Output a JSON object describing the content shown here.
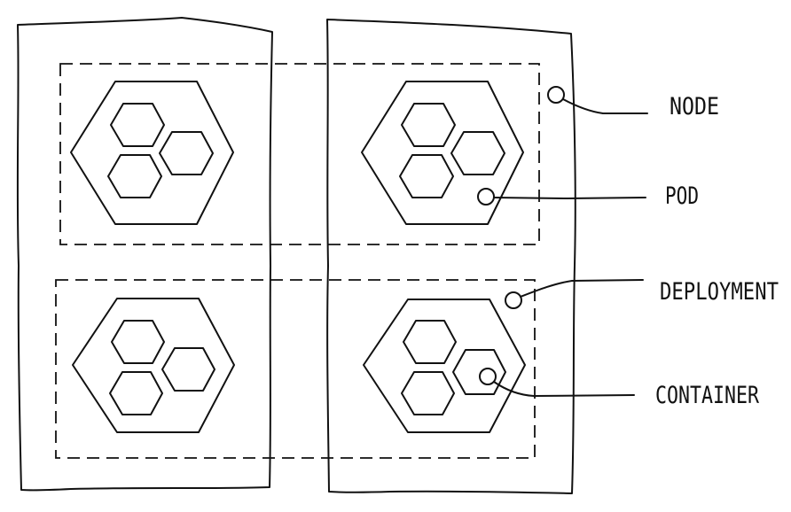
{
  "labels": {
    "node": "NODE",
    "pod": "POD",
    "deployment": "DEPLOYMENT",
    "container": "CONTAINER"
  },
  "colors": {
    "stroke": "#111111",
    "background": "#ffffff"
  },
  "structure": {
    "nodes": 2,
    "deployments": 2,
    "pods_per_node": 2,
    "containers_per_pod": 3
  }
}
